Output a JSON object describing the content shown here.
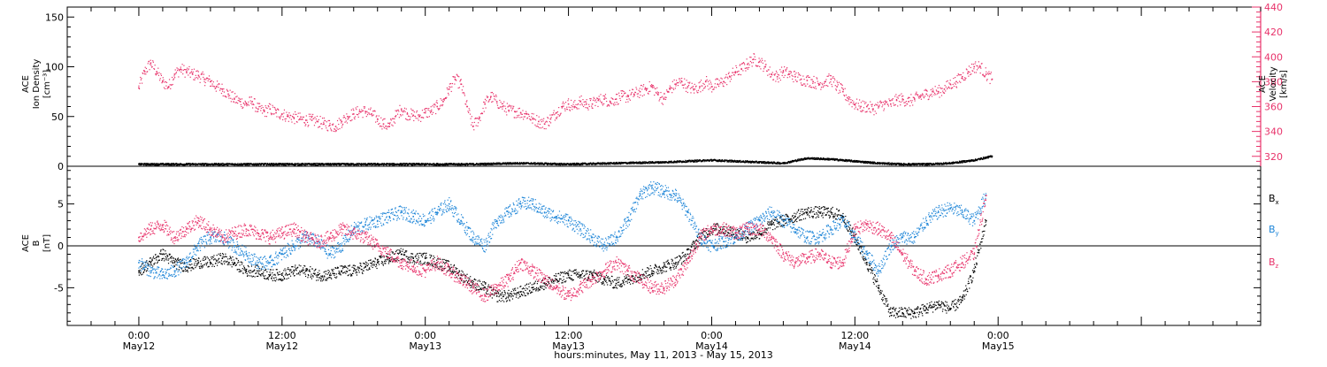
{
  "chart_data": [
    {
      "type": "scatter",
      "panel": "top",
      "y_left_label": [
        "ACE",
        "Ion Density",
        "[cm⁻³]"
      ],
      "y_right_label": [
        "ACE",
        "Velocity",
        "[km/s]"
      ],
      "y_left_ticks": [
        "150",
        "100",
        "50",
        "0"
      ],
      "y_left_range": [
        0,
        160
      ],
      "y_right_ticks": [
        "440",
        "420",
        "400",
        "380",
        "360",
        "340",
        "320"
      ],
      "y_right_range": [
        312,
        440
      ],
      "series": [
        {
          "name": "",
          "axis": "right",
          "color": "#e8336b",
          "x": [
            0.0,
            0.5,
            1.0,
            1.5,
            2.0,
            2.5,
            3.0,
            3.5,
            4.0,
            4.5,
            5.0,
            5.5,
            6.0,
            6.5,
            7.0,
            7.5,
            8.0,
            8.5,
            9.0,
            9.5,
            10.0,
            10.5,
            11.0,
            11.5,
            12.0,
            12.5,
            13.0,
            13.5,
            14.0,
            14.5,
            15.0,
            15.5,
            16.0,
            16.5,
            17.0,
            17.5,
            18.0,
            18.5,
            19.0,
            19.5,
            20.0,
            20.5,
            21.0,
            21.5,
            22.0,
            22.5,
            23.0,
            23.5,
            24.0,
            24.5,
            25.0,
            25.5,
            26.0,
            26.5,
            27.0,
            27.5,
            28.0,
            28.5,
            29.0,
            29.5,
            30.0,
            30.5,
            31.0,
            31.5,
            32.0,
            32.5,
            33.0,
            33.5,
            34.0,
            34.5,
            35.0,
            35.5,
            36.0,
            36.5,
            37.0,
            37.5,
            38.0,
            38.5,
            39.0,
            39.5,
            40.0,
            40.5,
            41.0,
            41.5,
            42.0,
            42.5,
            43.0,
            43.5,
            44.0,
            44.5,
            45.0,
            45.5,
            46.0,
            46.5,
            47.0,
            47.5,
            48.0,
            48.5,
            49.0,
            49.5,
            50.0,
            50.5,
            51.0,
            51.5,
            52.0,
            52.5,
            53.0,
            53.5,
            54.0,
            54.5,
            55.0,
            55.5,
            56.0,
            56.5,
            57.0,
            57.5,
            58.0,
            58.5,
            59.0,
            59.5,
            60.0,
            60.5,
            61.0,
            61.5,
            62.0,
            62.5,
            63.0,
            63.5,
            64.0,
            64.5,
            65.0,
            65.5,
            66.0,
            66.5,
            67.0,
            67.5,
            68.0,
            68.5,
            69.0,
            69.5,
            70.0,
            70.5,
            71.0,
            71.5
          ],
          "values": [
            375,
            388,
            395,
            388,
            380,
            376,
            386,
            390,
            388,
            386,
            385,
            382,
            380,
            376,
            374,
            370,
            366,
            364,
            362,
            364,
            358,
            356,
            358,
            355,
            354,
            352,
            351,
            350,
            349,
            349,
            348,
            346,
            345,
            344,
            348,
            352,
            354,
            356,
            356,
            354,
            350,
            346,
            344,
            352,
            358,
            354,
            353,
            352,
            355,
            356,
            360,
            364,
            374,
            382,
            378,
            360,
            344,
            350,
            362,
            368,
            364,
            360,
            357,
            356,
            355,
            354,
            350,
            348,
            346,
            350,
            355,
            360,
            362,
            360,
            364,
            362,
            362,
            365,
            366,
            364,
            366,
            368,
            368,
            370,
            372,
            374,
            376,
            370,
            366,
            374,
            378,
            380,
            376,
            374,
            376,
            380,
            376,
            378,
            380,
            384,
            388,
            390,
            394,
            398,
            396,
            392,
            386,
            384,
            388,
            386,
            384,
            382,
            381,
            380,
            378,
            380,
            382,
            376,
            372,
            366,
            362,
            360,
            360,
            358,
            360,
            362,
            362,
            365,
            366,
            364,
            366,
            368,
            370,
            372,
            372,
            374,
            378,
            380,
            384,
            388,
            392,
            392,
            386,
            382
          ]
        },
        {
          "name": "",
          "axis": "left",
          "color": "#000000",
          "x": [
            0,
            4,
            8,
            12,
            16,
            20,
            24,
            28,
            32,
            36,
            40,
            44,
            48,
            52,
            54,
            56,
            58,
            60,
            62,
            64,
            66,
            68,
            70,
            71.5
          ],
          "values": [
            2,
            2,
            2,
            2,
            2,
            2,
            2,
            2,
            3,
            2,
            3,
            4,
            6,
            4,
            3,
            8,
            7,
            5,
            3,
            2,
            2,
            3,
            6,
            10
          ]
        }
      ]
    },
    {
      "type": "scatter",
      "panel": "bottom",
      "y_label": [
        "ACE",
        "B",
        "[nT]"
      ],
      "y_ticks": [
        "5",
        "0",
        "-5"
      ],
      "y_range": [
        -9.5,
        9.5
      ],
      "series": [
        {
          "name": "B",
          "subscript": "x",
          "color": "#000000",
          "x": [
            0.0,
            1.0,
            2.0,
            3.0,
            4.0,
            5.0,
            6.0,
            7.0,
            8.0,
            9.0,
            10.0,
            11.0,
            12.0,
            13.0,
            14.0,
            15.0,
            16.0,
            17.0,
            18.0,
            19.0,
            20.0,
            21.0,
            22.0,
            23.0,
            24.0,
            25.0,
            26.0,
            27.0,
            28.0,
            29.0,
            30.0,
            31.0,
            32.0,
            33.0,
            34.0,
            35.0,
            36.0,
            37.0,
            38.0,
            39.0,
            40.0,
            41.0,
            42.0,
            43.0,
            44.0,
            45.0,
            46.0,
            47.0,
            48.0,
            49.0,
            50.0,
            51.0,
            52.0,
            53.0,
            54.0,
            55.0,
            56.0,
            57.0,
            58.0,
            59.0,
            60.0,
            61.0,
            62.0,
            63.0,
            64.0,
            65.0,
            66.0,
            67.0,
            68.0,
            69.0,
            70.0,
            71.0
          ],
          "values": [
            -3,
            -2,
            -1,
            -2,
            -2.5,
            -2,
            -2,
            -1.5,
            -2,
            -3,
            -3,
            -3.5,
            -3.5,
            -3,
            -3,
            -3.5,
            -3.5,
            -3,
            -3,
            -2.5,
            -2,
            -1.5,
            -1,
            -1.5,
            -1.5,
            -2,
            -2.5,
            -3.5,
            -4.5,
            -5,
            -6,
            -6,
            -5.5,
            -5,
            -4.5,
            -4,
            -3.5,
            -3.5,
            -3.5,
            -4,
            -4.5,
            -4,
            -3.5,
            -3,
            -2.5,
            -2,
            -1,
            1,
            2,
            2,
            1.5,
            1,
            1.5,
            2.5,
            3,
            3.5,
            4,
            4,
            4,
            3.5,
            1,
            -2,
            -5,
            -8,
            -8,
            -8,
            -7.5,
            -7,
            -7.5,
            -6.5,
            -3,
            3
          ]
        },
        {
          "name": "B",
          "subscript": "y",
          "color": "#1f86d8",
          "x": [
            0.0,
            1.0,
            2.0,
            3.0,
            4.0,
            5.0,
            6.0,
            7.0,
            8.0,
            9.0,
            10.0,
            11.0,
            12.0,
            13.0,
            14.0,
            15.0,
            16.0,
            17.0,
            18.0,
            19.0,
            20.0,
            21.0,
            22.0,
            23.0,
            24.0,
            25.0,
            26.0,
            27.0,
            28.0,
            29.0,
            30.0,
            31.0,
            32.0,
            33.0,
            34.0,
            35.0,
            36.0,
            37.0,
            38.0,
            39.0,
            40.0,
            41.0,
            42.0,
            43.0,
            44.0,
            45.0,
            46.0,
            47.0,
            48.0,
            49.0,
            50.0,
            51.0,
            52.0,
            53.0,
            54.0,
            55.0,
            56.0,
            57.0,
            58.0,
            59.0,
            60.0,
            61.0,
            62.0,
            63.0,
            64.0,
            65.0,
            66.0,
            67.0,
            68.0,
            69.0,
            70.0,
            71.0
          ],
          "values": [
            -2,
            -3,
            -3.5,
            -3,
            -2,
            0,
            1,
            1,
            0,
            -1,
            -2,
            -2,
            -1,
            0,
            1,
            0.5,
            -1,
            0,
            2,
            2.5,
            3,
            3.5,
            4,
            3.5,
            3,
            4,
            5,
            3,
            1,
            0,
            3,
            4,
            5,
            5,
            4,
            3.5,
            3,
            2,
            1,
            0,
            1,
            3,
            6,
            7,
            6.5,
            6,
            4,
            1,
            0,
            0.5,
            1,
            2,
            3,
            4,
            3,
            2,
            1,
            1,
            2,
            3,
            1,
            -1,
            -3,
            0,
            1,
            1,
            3,
            4,
            4.5,
            4,
            3,
            6
          ]
        },
        {
          "name": "B",
          "subscript": "z",
          "color": "#e8336b",
          "x": [
            0.0,
            1.0,
            2.0,
            3.0,
            4.0,
            5.0,
            6.0,
            7.0,
            8.0,
            9.0,
            10.0,
            11.0,
            12.0,
            13.0,
            14.0,
            15.0,
            16.0,
            17.0,
            18.0,
            19.0,
            20.0,
            21.0,
            22.0,
            23.0,
            24.0,
            25.0,
            26.0,
            27.0,
            28.0,
            29.0,
            30.0,
            31.0,
            32.0,
            33.0,
            34.0,
            35.0,
            36.0,
            37.0,
            38.0,
            39.0,
            40.0,
            41.0,
            42.0,
            43.0,
            44.0,
            45.0,
            46.0,
            47.0,
            48.0,
            49.0,
            50.0,
            51.0,
            52.0,
            53.0,
            54.0,
            55.0,
            56.0,
            57.0,
            58.0,
            59.0,
            60.0,
            61.0,
            62.0,
            63.0,
            64.0,
            65.0,
            66.0,
            67.0,
            68.0,
            69.0,
            70.0,
            71.0
          ],
          "values": [
            1,
            2,
            2.5,
            1,
            2,
            3,
            2,
            1,
            1.5,
            2,
            1.5,
            1,
            1.5,
            2,
            1,
            0.5,
            1,
            2,
            1.5,
            1,
            0,
            -1,
            -2,
            -2.5,
            -3,
            -2,
            -3,
            -4,
            -5,
            -6,
            -5,
            -4,
            -2,
            -3,
            -4,
            -5,
            -6,
            -5,
            -4,
            -3,
            -2,
            -3,
            -4,
            -5,
            -5,
            -4,
            -2,
            1,
            2,
            2,
            1.5,
            2,
            2,
            1,
            -1,
            -2,
            -1.5,
            -1,
            -2,
            -2,
            2,
            2.5,
            2,
            1,
            -1,
            -3,
            -4,
            -3.5,
            -3,
            -2,
            -1,
            6
          ]
        }
      ]
    }
  ],
  "x_axis": {
    "range": [
      -6,
      94
    ],
    "ticks": [
      {
        "hours": 0,
        "time": "0:00",
        "date": "May12"
      },
      {
        "hours": 12,
        "time": "12:00",
        "date": "May12"
      },
      {
        "hours": 24,
        "time": "0:00",
        "date": "May13"
      },
      {
        "hours": 36,
        "time": "12:00",
        "date": "May13"
      },
      {
        "hours": 48,
        "time": "0:00",
        "date": "May14"
      },
      {
        "hours": 60,
        "time": "12:00",
        "date": "May14"
      },
      {
        "hours": 72,
        "time": "0:00",
        "date": "May15"
      }
    ],
    "label": "hours:minutes, May 11, 2013 - May 15, 2013"
  }
}
